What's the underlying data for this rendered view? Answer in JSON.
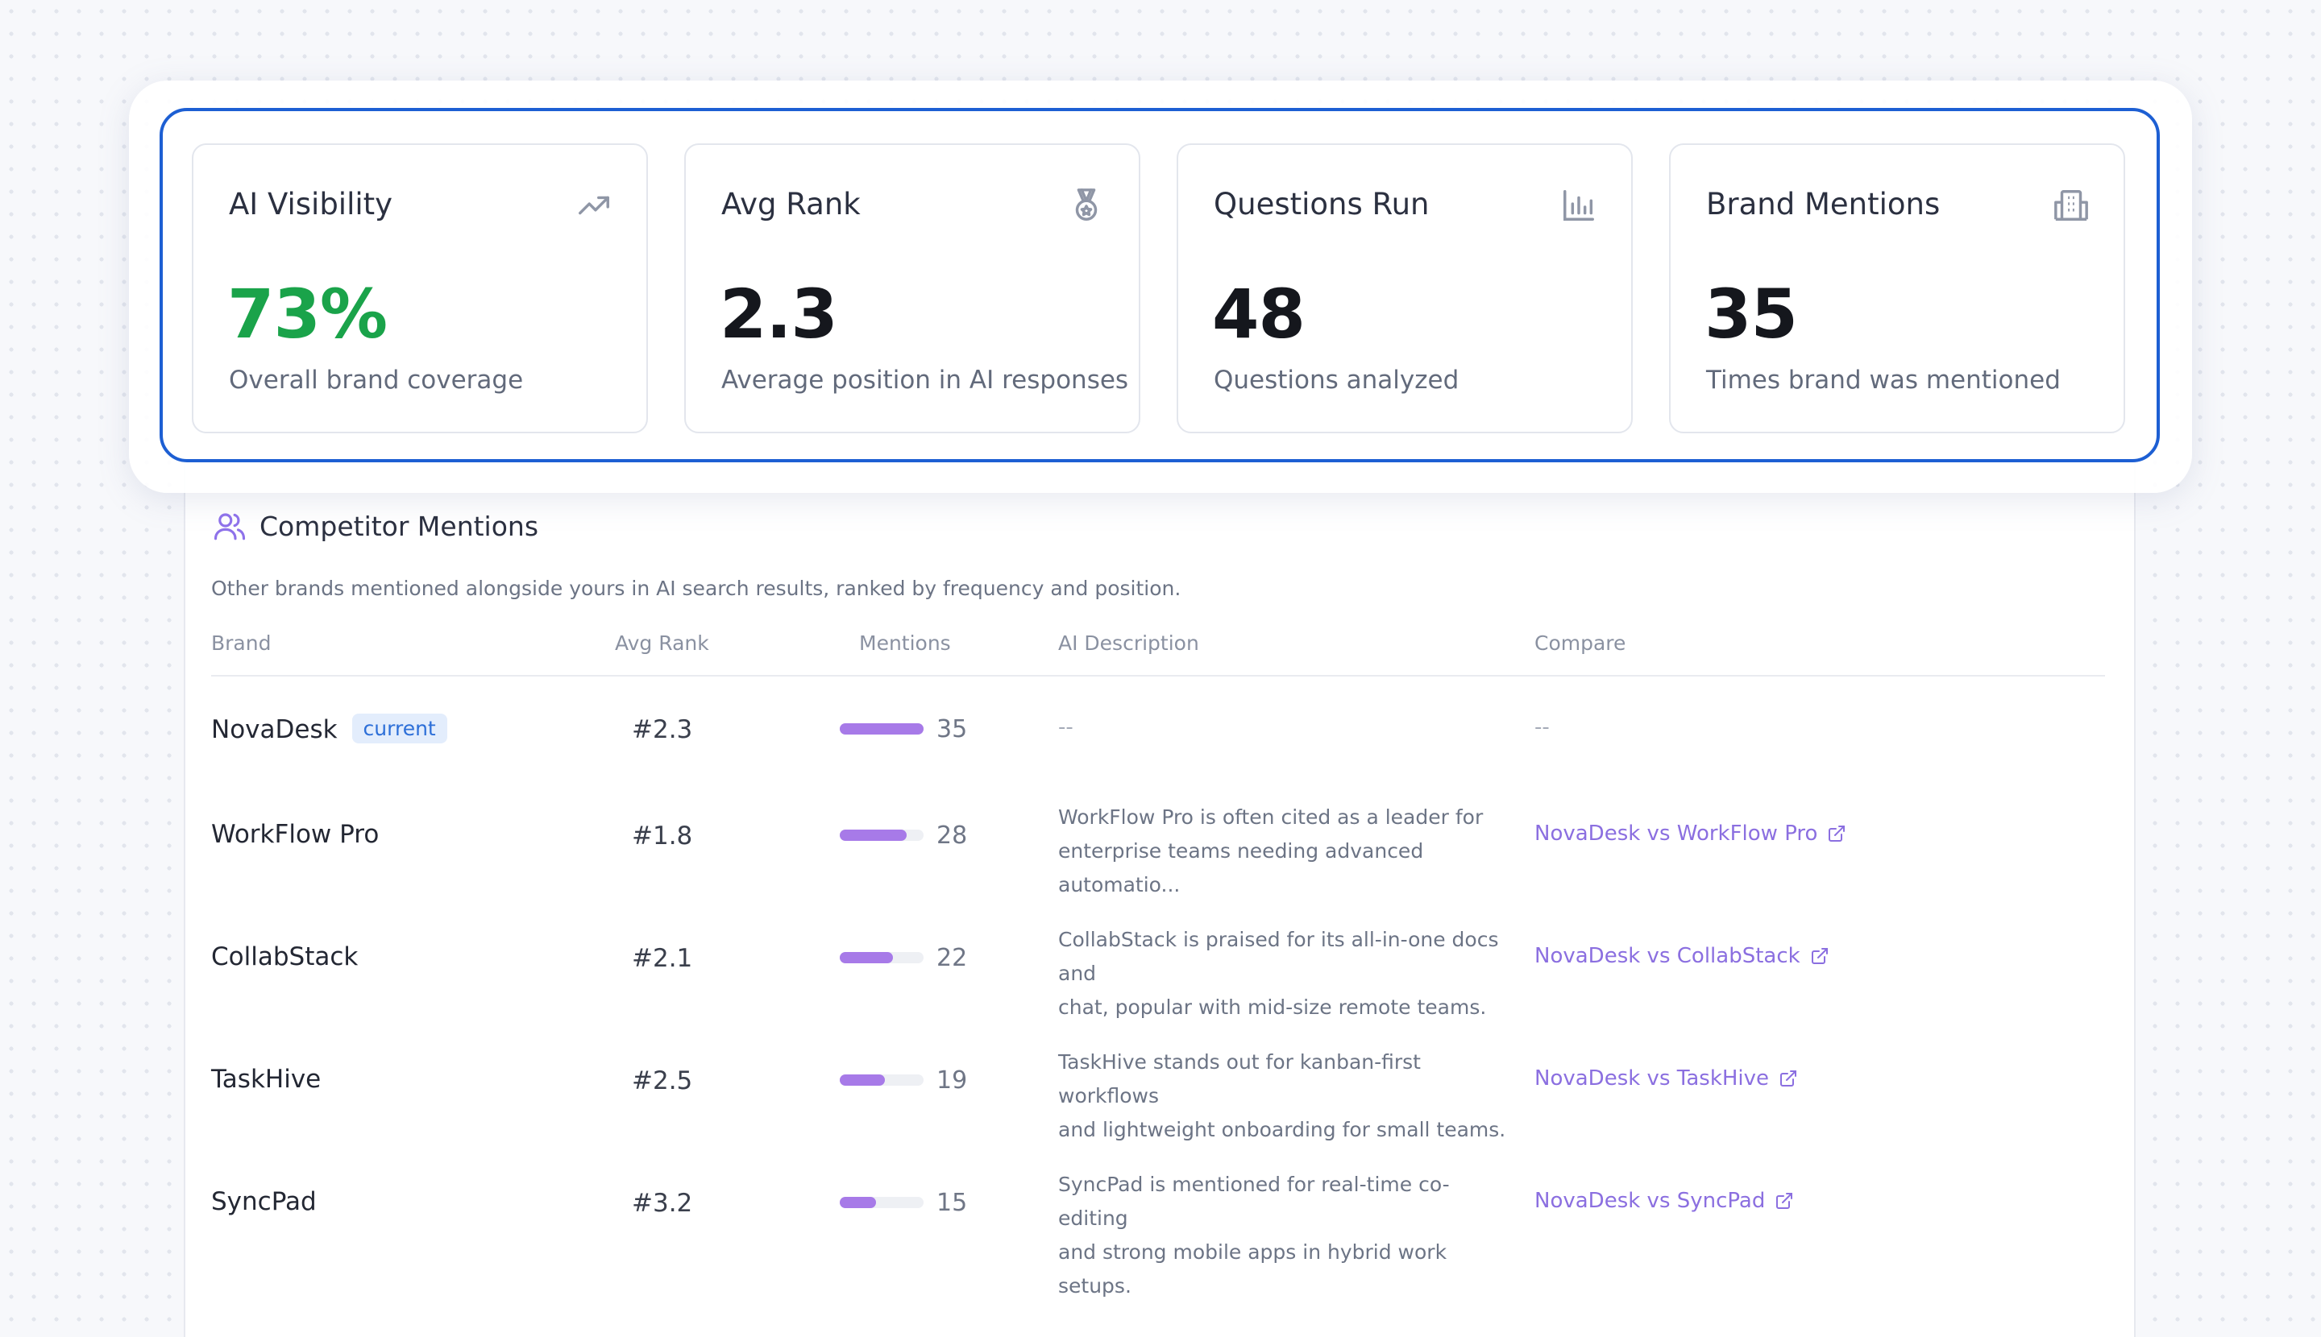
{
  "stats": [
    {
      "title": "AI Visibility",
      "value": "73%",
      "subtitle": "Overall brand coverage",
      "icon": "trending-up-icon"
    },
    {
      "title": "Avg Rank",
      "value": "2.3",
      "subtitle": "Average position in AI responses",
      "icon": "medal-icon"
    },
    {
      "title": "Questions Run",
      "value": "48",
      "subtitle": "Questions analyzed",
      "icon": "bar-chart-icon"
    },
    {
      "title": "Brand Mentions",
      "value": "35",
      "subtitle": "Times brand was mentioned",
      "icon": "building-icon"
    }
  ],
  "competitors": {
    "title": "Competitor Mentions",
    "icon": "users-icon",
    "description": "Other brands mentioned alongside yours in AI search results, ranked by frequency and position.",
    "headers": {
      "brand": "Brand",
      "avg_rank": "Avg Rank",
      "mentions": "Mentions",
      "ai_description": "AI Description",
      "compare": "Compare"
    },
    "current_badge": "current",
    "rows": [
      {
        "brand": "NovaDesk",
        "current": true,
        "rank": "#2.3",
        "mentions": 35,
        "mentions_label": "35",
        "bar_fraction": 1.0,
        "desc_line1": "--",
        "desc_line2": "",
        "compare": "--"
      },
      {
        "brand": "WorkFlow Pro",
        "current": false,
        "rank": "#1.8",
        "mentions": 28,
        "mentions_label": "28",
        "bar_fraction": 0.8,
        "desc_line1": "WorkFlow Pro is often cited as a leader for",
        "desc_line2": "enterprise teams needing advanced automatio...",
        "compare": "NovaDesk vs WorkFlow Pro"
      },
      {
        "brand": "CollabStack",
        "current": false,
        "rank": "#2.1",
        "mentions": 22,
        "mentions_label": "22",
        "bar_fraction": 0.63,
        "desc_line1": "CollabStack is praised for its all-in-one docs and",
        "desc_line2": "chat, popular with mid-size remote teams.",
        "compare": "NovaDesk vs CollabStack"
      },
      {
        "brand": "TaskHive",
        "current": false,
        "rank": "#2.5",
        "mentions": 19,
        "mentions_label": "19",
        "bar_fraction": 0.54,
        "desc_line1": "TaskHive stands out for kanban-first workflows",
        "desc_line2": "and lightweight onboarding for small teams.",
        "compare": "NovaDesk vs TaskHive"
      },
      {
        "brand": "SyncPad",
        "current": false,
        "rank": "#3.2",
        "mentions": 15,
        "mentions_label": "15",
        "bar_fraction": 0.43,
        "desc_line1": "SyncPad is mentioned for real-time co-editing",
        "desc_line2": "and strong mobile apps in hybrid work setups.",
        "compare": "NovaDesk vs SyncPad"
      }
    ]
  },
  "colors": {
    "accent_blue": "#1d5fd3",
    "positive_green": "#1aa34a",
    "bar_purple": "#a77ae8",
    "link_purple": "#8b6fe0"
  }
}
